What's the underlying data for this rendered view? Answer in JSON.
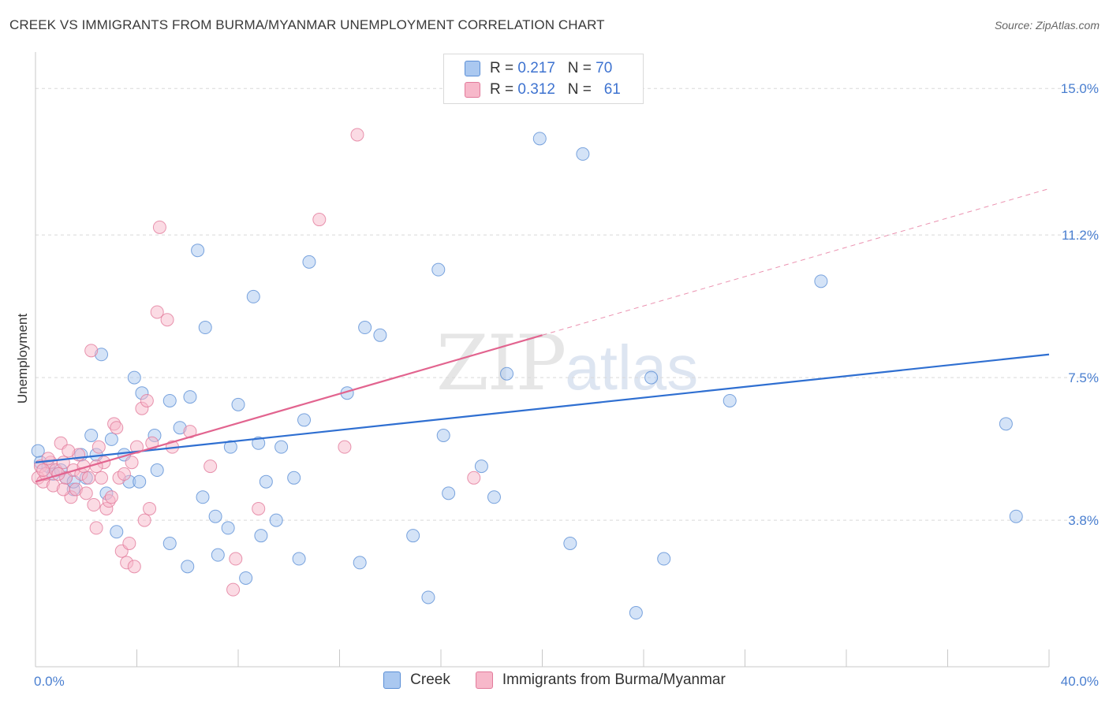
{
  "header": {
    "title": "CREEK VS IMMIGRANTS FROM BURMA/MYANMAR UNEMPLOYMENT CORRELATION CHART",
    "source": "Source: ZipAtlas.com"
  },
  "watermark": {
    "zip": "ZIP",
    "atlas": "atlas"
  },
  "legend": {
    "rows": [
      {
        "r_label": "R =",
        "r_value": "0.217",
        "n_label": "N =",
        "n_value": "70",
        "color": "#aac8f0"
      },
      {
        "r_label": "R =",
        "r_value": "0.312",
        "n_label": "N =",
        "n_value": "61",
        "color": "#f7b8ca"
      }
    ]
  },
  "bottom_legend": {
    "items": [
      {
        "label": "Creek",
        "color": "#aac8f0"
      },
      {
        "label": "Immigrants from Burma/Myanmar",
        "color": "#f7b8ca"
      }
    ]
  },
  "chart_data": {
    "type": "scatter",
    "title": "CREEK VS IMMIGRANTS FROM BURMA/MYANMAR UNEMPLOYMENT CORRELATION CHART",
    "xlabel": "",
    "ylabel": "Unemployment",
    "xlim": [
      0,
      40
    ],
    "ylim": [
      0,
      15.7
    ],
    "x_tick_labels": [
      {
        "value": 0,
        "label": "0.0%"
      },
      {
        "value": 40,
        "label": "40.0%"
      }
    ],
    "y_tick_labels": [
      {
        "value": 3.8,
        "label": "3.8%"
      },
      {
        "value": 7.5,
        "label": "7.5%"
      },
      {
        "value": 11.2,
        "label": "11.2%"
      },
      {
        "value": 15.0,
        "label": "15.0%"
      }
    ],
    "grid": true,
    "legend_position": "top-center",
    "colors": {
      "creek_fill": "#aac8f0",
      "creek_stroke": "#5b8fd6",
      "creek_line": "#2f6fd1",
      "burma_fill": "#f7b8ca",
      "burma_stroke": "#e27a9b",
      "burma_line": "#e2648f",
      "grid": "#d9d9d9",
      "axis_tick_text": "#4a7fd0"
    },
    "series": [
      {
        "name": "Creek",
        "points": [
          [
            0.2,
            5.3
          ],
          [
            0.5,
            5.2
          ],
          [
            0.7,
            5.0
          ],
          [
            1.0,
            5.1
          ],
          [
            1.2,
            4.9
          ],
          [
            1.5,
            4.6
          ],
          [
            1.5,
            4.8
          ],
          [
            1.8,
            5.5
          ],
          [
            2.0,
            4.9
          ],
          [
            2.2,
            6.0
          ],
          [
            2.4,
            5.5
          ],
          [
            2.6,
            8.1
          ],
          [
            2.8,
            4.5
          ],
          [
            3.0,
            5.9
          ],
          [
            3.2,
            3.5
          ],
          [
            3.5,
            5.5
          ],
          [
            3.7,
            4.8
          ],
          [
            3.9,
            7.5
          ],
          [
            4.1,
            4.8
          ],
          [
            4.2,
            7.1
          ],
          [
            4.8,
            5.1
          ],
          [
            4.7,
            6.0
          ],
          [
            5.3,
            6.9
          ],
          [
            5.3,
            3.2
          ],
          [
            5.7,
            6.2
          ],
          [
            6.0,
            2.6
          ],
          [
            6.1,
            7.0
          ],
          [
            6.4,
            10.8
          ],
          [
            6.6,
            4.4
          ],
          [
            6.7,
            8.8
          ],
          [
            7.1,
            3.9
          ],
          [
            7.2,
            2.9
          ],
          [
            7.6,
            3.6
          ],
          [
            7.7,
            5.7
          ],
          [
            8.0,
            6.8
          ],
          [
            8.3,
            2.3
          ],
          [
            8.6,
            9.6
          ],
          [
            8.8,
            5.8
          ],
          [
            8.9,
            3.4
          ],
          [
            9.1,
            4.8
          ],
          [
            9.5,
            3.8
          ],
          [
            9.7,
            5.7
          ],
          [
            10.2,
            4.9
          ],
          [
            10.4,
            2.8
          ],
          [
            10.6,
            6.4
          ],
          [
            10.8,
            10.5
          ],
          [
            12.3,
            7.1
          ],
          [
            12.8,
            2.7
          ],
          [
            13.0,
            8.8
          ],
          [
            13.6,
            8.6
          ],
          [
            14.9,
            3.4
          ],
          [
            15.5,
            1.8
          ],
          [
            15.9,
            10.3
          ],
          [
            16.1,
            6.0
          ],
          [
            16.3,
            4.5
          ],
          [
            17.6,
            5.2
          ],
          [
            18.1,
            4.4
          ],
          [
            18.6,
            7.6
          ],
          [
            19.9,
            13.7
          ],
          [
            21.1,
            3.2
          ],
          [
            21.6,
            13.3
          ],
          [
            22.7,
            15.1
          ],
          [
            23.7,
            1.4
          ],
          [
            24.3,
            7.5
          ],
          [
            24.8,
            2.8
          ],
          [
            27.4,
            6.9
          ],
          [
            31.0,
            10.0
          ],
          [
            38.3,
            6.3
          ],
          [
            38.7,
            3.9
          ],
          [
            0.1,
            5.6
          ]
        ]
      },
      {
        "name": "Immigrants from Burma/Myanmar",
        "points": [
          [
            0.1,
            4.9
          ],
          [
            0.2,
            5.2
          ],
          [
            0.3,
            4.8
          ],
          [
            0.4,
            5.0
          ],
          [
            0.6,
            5.3
          ],
          [
            0.7,
            4.7
          ],
          [
            0.8,
            5.1
          ],
          [
            1.0,
            5.8
          ],
          [
            1.1,
            5.3
          ],
          [
            1.2,
            4.9
          ],
          [
            1.4,
            4.4
          ],
          [
            1.5,
            5.1
          ],
          [
            1.6,
            4.6
          ],
          [
            1.7,
            5.5
          ],
          [
            1.8,
            5.0
          ],
          [
            1.9,
            5.2
          ],
          [
            2.0,
            4.5
          ],
          [
            2.1,
            4.9
          ],
          [
            2.2,
            8.2
          ],
          [
            2.3,
            4.2
          ],
          [
            2.4,
            3.6
          ],
          [
            2.5,
            5.7
          ],
          [
            2.6,
            4.9
          ],
          [
            2.7,
            5.3
          ],
          [
            2.8,
            4.1
          ],
          [
            2.9,
            4.3
          ],
          [
            3.1,
            6.3
          ],
          [
            3.2,
            6.2
          ],
          [
            3.3,
            4.9
          ],
          [
            3.4,
            3.0
          ],
          [
            3.5,
            5.0
          ],
          [
            3.6,
            2.7
          ],
          [
            3.7,
            3.2
          ],
          [
            3.8,
            5.3
          ],
          [
            3.9,
            2.6
          ],
          [
            4.0,
            5.7
          ],
          [
            4.2,
            6.7
          ],
          [
            4.3,
            3.8
          ],
          [
            4.4,
            6.9
          ],
          [
            4.5,
            4.1
          ],
          [
            4.6,
            5.8
          ],
          [
            4.8,
            9.2
          ],
          [
            4.9,
            11.4
          ],
          [
            5.2,
            9.0
          ],
          [
            5.4,
            5.7
          ],
          [
            6.1,
            6.1
          ],
          [
            6.9,
            5.2
          ],
          [
            7.9,
            2.8
          ],
          [
            7.8,
            2.0
          ],
          [
            8.8,
            4.1
          ],
          [
            11.2,
            11.6
          ],
          [
            12.2,
            5.7
          ],
          [
            12.7,
            13.8
          ],
          [
            17.3,
            4.9
          ],
          [
            0.5,
            5.4
          ],
          [
            1.3,
            5.6
          ],
          [
            0.9,
            5.0
          ],
          [
            2.4,
            5.2
          ],
          [
            3.0,
            4.4
          ],
          [
            1.1,
            4.6
          ],
          [
            0.3,
            5.1
          ]
        ]
      }
    ],
    "trend_lines": [
      {
        "series": "Creek",
        "x": [
          0,
          40
        ],
        "y": [
          5.3,
          8.1
        ],
        "style": "solid"
      },
      {
        "series": "Immigrants from Burma/Myanmar",
        "x": [
          0,
          20
        ],
        "y": [
          4.8,
          8.6
        ],
        "style": "solid"
      },
      {
        "series": "Immigrants from Burma/Myanmar",
        "x": [
          20,
          40
        ],
        "y": [
          8.6,
          12.4
        ],
        "style": "dashed"
      }
    ]
  }
}
